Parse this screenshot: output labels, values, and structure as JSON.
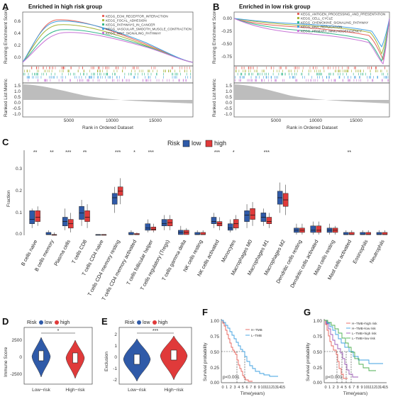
{
  "panels": {
    "A": {
      "label": "A",
      "title": "Enriched in high risk group",
      "ylabel_top": "Running Enrichment Score",
      "ylabel_bottom": "Ranked List Metric",
      "xlabel": "Rank in Ordered Dataset",
      "xticks": [
        "5000",
        "10000",
        "15000"
      ],
      "yticks_top": [
        "0.6",
        "0.4",
        "0.2",
        "0.0"
      ],
      "yticks_bottom": [
        "1.5",
        "1.0",
        "0.5",
        "0.0",
        "-0.5",
        "-1.0"
      ],
      "legend": [
        {
          "name": "KEGG_ECM_RECEPTOR_INTERACTION",
          "color": "#e8635b"
        },
        {
          "name": "KEGG_FOCAL_ADHESION",
          "color": "#a7b43a"
        },
        {
          "name": "KEGG_PATHWAYS_IN_CANCER",
          "color": "#35b88c"
        },
        {
          "name": "KEGG_VASCULAR_SMOOTH_MUSCLE_CONTRACTION",
          "color": "#3fa0e0"
        },
        {
          "name": "KEGG_WNT_SIGNALING_PATHWAY",
          "color": "#c773d6"
        }
      ]
    },
    "B": {
      "label": "B",
      "title": "Enriched in low risk group",
      "ylabel_top": "Running Enrichment Score",
      "ylabel_bottom": "Ranked List Metric",
      "xlabel": "Rank in Ordered Dataset",
      "xticks": [
        "5000",
        "10000",
        "15000"
      ],
      "yticks_top": [
        "0.00",
        "-0.25",
        "-0.50",
        "-0.75"
      ],
      "yticks_bottom": [
        "1.5",
        "1.0",
        "0.5",
        "0.0",
        "-0.5",
        "-1.0"
      ],
      "legend": [
        {
          "name": "KEGG_ANTIGEN_PROCESSING_AND_PRESENTATION",
          "color": "#e8635b"
        },
        {
          "name": "KEGG_CELL_CYCLE",
          "color": "#a7b43a"
        },
        {
          "name": "KEGG_CHEMOKINE_SIGNALING_PATHWAY",
          "color": "#35b88c"
        },
        {
          "name": "KEGG_DNA_REPLICATION",
          "color": "#3fa0e0"
        },
        {
          "name": "KEGG_PRIMARY_IMMUNODEFICIENCY",
          "color": "#c773d6"
        }
      ]
    },
    "C": {
      "label": "C",
      "legend_title": "Risk",
      "legend_low": "low",
      "legend_high": "high",
      "ylabel": "Fraction",
      "yticks": [
        "0.0",
        "0.1",
        "0.2",
        "0.3"
      ],
      "categories": [
        {
          "name": "B cells naive",
          "sig": "**"
        },
        {
          "name": "B cells memory",
          "sig": "**"
        },
        {
          "name": "Plasma cells",
          "sig": "***"
        },
        {
          "name": "T cells CD8",
          "sig": "**"
        },
        {
          "name": "T cells CD4 naive",
          "sig": ""
        },
        {
          "name": "T cells CD4 memory resting",
          "sig": "***"
        },
        {
          "name": "T cells CD4 memory activated",
          "sig": "*"
        },
        {
          "name": "T cells follicular helper",
          "sig": "***"
        },
        {
          "name": "T cells regulatory (Tregs)",
          "sig": ""
        },
        {
          "name": "T cells gamma delta",
          "sig": ""
        },
        {
          "name": "NK cells resting",
          "sig": ""
        },
        {
          "name": "NK cells activated",
          "sig": "***"
        },
        {
          "name": "Monocytes",
          "sig": "*"
        },
        {
          "name": "Macrophages M0",
          "sig": ""
        },
        {
          "name": "Macrophages M1",
          "sig": "***"
        },
        {
          "name": "Macrophages M2",
          "sig": ""
        },
        {
          "name": "Dendritic cells resting",
          "sig": ""
        },
        {
          "name": "Dendritic cells activated",
          "sig": ""
        },
        {
          "name": "Mast cells resting",
          "sig": ""
        },
        {
          "name": "Mast cells activated",
          "sig": "**"
        },
        {
          "name": "Eosinophils",
          "sig": ""
        },
        {
          "name": "Neutrophils",
          "sig": ""
        }
      ]
    },
    "D": {
      "label": "D",
      "legend_title": "Risk",
      "legend_low": "low",
      "legend_high": "high",
      "ylabel": "Immune Score",
      "yticks": [
        "2500",
        "0",
        "-2500"
      ],
      "xticks": [
        "Low−risk",
        "High−risk"
      ],
      "sig": "*"
    },
    "E": {
      "label": "E",
      "legend_title": "Risk",
      "legend_low": "low",
      "legend_high": "high",
      "ylabel": "Exclusion",
      "yticks": [
        "2",
        "1",
        "0",
        "-1",
        "-2"
      ],
      "xticks": [
        "Low−risk",
        "High−risk"
      ],
      "sig": "***"
    },
    "F": {
      "label": "F",
      "ylabel": "Survival probability",
      "xlabel": "Time(years)",
      "yticks": [
        "1.00",
        "0.75",
        "0.50",
        "0.25",
        "0.00"
      ],
      "xticks": [
        "0",
        "1",
        "2",
        "3",
        "4",
        "5",
        "6",
        "7",
        "8",
        "9",
        "10",
        "11",
        "12",
        "13",
        "14",
        "15"
      ],
      "pvalue": "p<0.001",
      "legend": [
        {
          "name": "H−TMB",
          "color": "#e8635b"
        },
        {
          "name": "L−TMB",
          "color": "#3fa0e0"
        }
      ]
    },
    "G": {
      "label": "G",
      "ylabel": "Survival probability",
      "xlabel": "Time(years)",
      "yticks": [
        "1.00",
        "0.75",
        "0.50",
        "0.25",
        "0.00"
      ],
      "xticks": [
        "0",
        "1",
        "2",
        "3",
        "4",
        "5",
        "6",
        "7",
        "8",
        "9",
        "10",
        "11",
        "12",
        "13",
        "14",
        "15"
      ],
      "pvalue": "p<0.001",
      "legend": [
        {
          "name": "H−TMB+high risk",
          "color": "#e8635b"
        },
        {
          "name": "H−TMB+low risk",
          "color": "#3fa0e0"
        },
        {
          "name": "L−TMB+high risk",
          "color": "#9b59b6"
        },
        {
          "name": "L−TMB+low risk",
          "color": "#4caf50"
        }
      ]
    }
  },
  "colors": {
    "low": "#2f5aa8",
    "high": "#e03a3a"
  }
}
